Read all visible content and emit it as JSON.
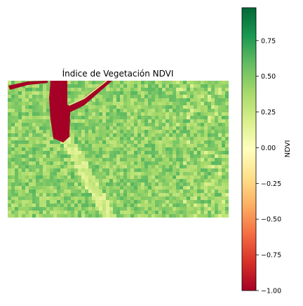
{
  "chart_data": {
    "type": "heatmap",
    "title": "Índice de Vegetación NDVI",
    "xlabel": "",
    "ylabel": "",
    "axes_visible": false,
    "grid": false,
    "colormap": "RdYlGn",
    "colorbar": {
      "label": "NDVI",
      "vmin": -1.0,
      "vmax": 0.98,
      "ticks": [
        -1.0,
        -0.75,
        -0.5,
        -0.25,
        0.0,
        0.25,
        0.5,
        0.75
      ],
      "tick_labels": [
        "−1.00",
        "−0.75",
        "−0.50",
        "−0.25",
        "0.00",
        "0.25",
        "0.50",
        "0.75"
      ],
      "colors": [
        "#a50026",
        "#d73027",
        "#f46d43",
        "#fdae61",
        "#fee08b",
        "#ffffbf",
        "#d9ef8b",
        "#a6d96a",
        "#66bd63",
        "#1a9850",
        "#006837"
      ]
    },
    "image_content": "satellite NDVI map: predominantly green vegetation (NDVI ~0.4–0.7) with a dark red water body (NDVI ~ -1.0) in the upper-left area and pale yellow bare/urban patches along a valley"
  }
}
